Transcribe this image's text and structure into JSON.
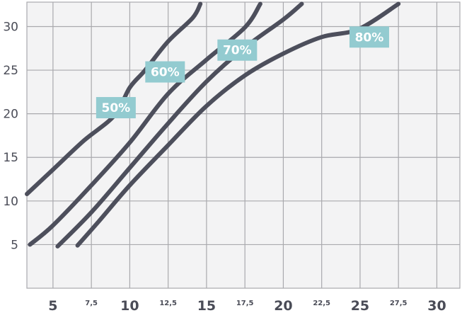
{
  "chart_data": {
    "type": "line",
    "title": "",
    "xlabel": "",
    "ylabel": "",
    "xlim": [
      3.3,
      31.5
    ],
    "ylim": [
      0,
      32.8
    ],
    "grid": true,
    "x_ticks": [
      {
        "value": 5,
        "label": "5",
        "major": true
      },
      {
        "value": 7.5,
        "label": "7,5",
        "major": false
      },
      {
        "value": 10,
        "label": "10",
        "major": true
      },
      {
        "value": 12.5,
        "label": "12,5",
        "major": false
      },
      {
        "value": 15,
        "label": "15",
        "major": true
      },
      {
        "value": 17.5,
        "label": "17,5",
        "major": false
      },
      {
        "value": 20,
        "label": "20",
        "major": true
      },
      {
        "value": 22.5,
        "label": "22,5",
        "major": false
      },
      {
        "value": 25,
        "label": "25",
        "major": true
      },
      {
        "value": 27.5,
        "label": "27,5",
        "major": false
      },
      {
        "value": 30,
        "label": "30",
        "major": true
      }
    ],
    "y_ticks": [
      {
        "value": 5,
        "label": "5"
      },
      {
        "value": 10,
        "label": "10"
      },
      {
        "value": 15,
        "label": "15"
      },
      {
        "value": 20,
        "label": "20"
      },
      {
        "value": 25,
        "label": "25"
      },
      {
        "value": 30,
        "label": "30"
      }
    ],
    "series": [
      {
        "name": "50%",
        "label_at": [
          9.1,
          20.7
        ],
        "points": [
          [
            3.3,
            10.8
          ],
          [
            5.0,
            13.6
          ],
          [
            7.0,
            16.9
          ],
          [
            9.0,
            19.8
          ],
          [
            10.0,
            23.0
          ],
          [
            11.0,
            25.0
          ],
          [
            12.5,
            28.3
          ],
          [
            14.1,
            31.0
          ],
          [
            14.6,
            32.6
          ]
        ]
      },
      {
        "name": "60%",
        "label_at": [
          12.3,
          24.8
        ],
        "points": [
          [
            3.5,
            5.0
          ],
          [
            5.0,
            7.2
          ],
          [
            7.5,
            11.8
          ],
          [
            10.0,
            16.7
          ],
          [
            12.5,
            22.3
          ],
          [
            15.0,
            26.2
          ],
          [
            17.5,
            29.9
          ],
          [
            18.5,
            32.6
          ]
        ]
      },
      {
        "name": "70%",
        "label_at": [
          17.0,
          27.3
        ],
        "points": [
          [
            5.3,
            4.8
          ],
          [
            7.5,
            8.7
          ],
          [
            10.0,
            13.8
          ],
          [
            12.5,
            18.9
          ],
          [
            15.0,
            23.7
          ],
          [
            17.5,
            27.6
          ],
          [
            20.0,
            30.8
          ],
          [
            21.2,
            32.6
          ]
        ]
      },
      {
        "name": "80%",
        "label_at": [
          25.6,
          28.8
        ],
        "points": [
          [
            6.6,
            4.9
          ],
          [
            8.0,
            7.7
          ],
          [
            10.0,
            11.8
          ],
          [
            12.5,
            16.4
          ],
          [
            15.0,
            20.9
          ],
          [
            17.5,
            24.4
          ],
          [
            20.0,
            26.9
          ],
          [
            22.5,
            28.8
          ],
          [
            24.9,
            29.7
          ],
          [
            27.5,
            32.6
          ]
        ]
      }
    ]
  }
}
